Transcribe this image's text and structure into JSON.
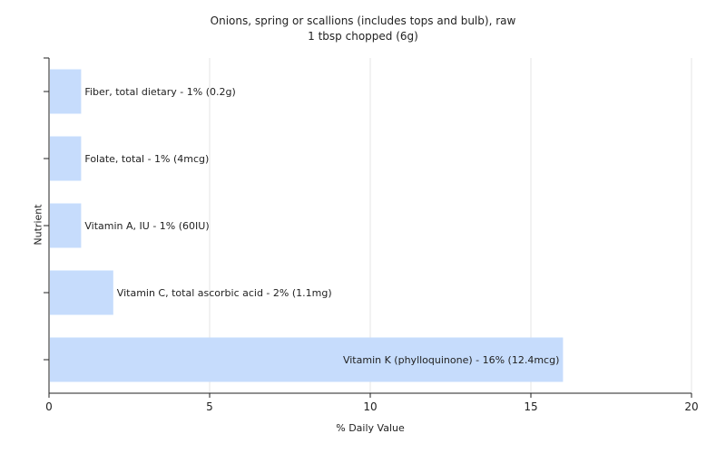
{
  "chart_data": {
    "type": "bar",
    "orientation": "horizontal",
    "title": "Onions, spring or scallions (includes tops and bulb), raw",
    "subtitle": "1 tbsp chopped (6g)",
    "xlabel": "% Daily Value",
    "ylabel": "Nutrient",
    "xlim": [
      0,
      20
    ],
    "xticks": [
      "0",
      "5",
      "10",
      "15",
      "20"
    ],
    "grid": "vertical",
    "bar_color": "#c6dcfc",
    "categories": [
      "Fiber, total dietary",
      "Folate, total",
      "Vitamin A, IU",
      "Vitamin C, total ascorbic acid",
      "Vitamin K (phylloquinone)"
    ],
    "values": [
      1,
      1,
      1,
      2,
      16
    ],
    "labels": [
      "Fiber, total dietary - 1% (0.2g)",
      "Folate, total - 1% (4mcg)",
      "Vitamin A, IU - 1% (60IU)",
      "Vitamin C, total ascorbic acid - 2% (1.1mg)",
      "Vitamin K (phylloquinone) - 16% (12.4mcg)"
    ]
  }
}
